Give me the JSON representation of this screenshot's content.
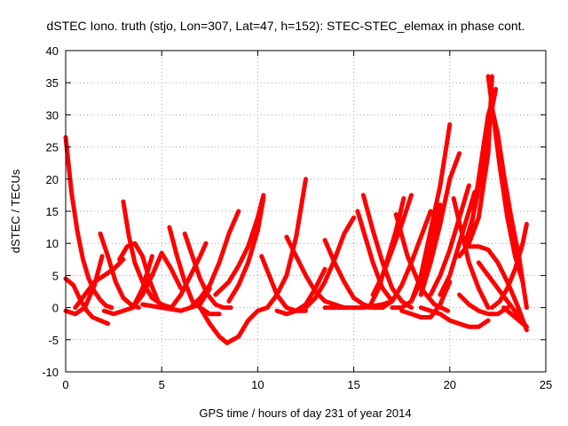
{
  "chart_data": {
    "type": "scatter",
    "title": "dSTEC Iono. truth (stjo, Lon=307, Lat=47, h=152): STEC-STEC_elemax in phase cont.",
    "xlabel": "GPS time / hours of day 231 of year 2014",
    "ylabel": "dSTEC  / TECUs",
    "xlim": [
      0,
      25
    ],
    "ylim": [
      -10,
      40
    ],
    "xticks": [
      0,
      5,
      10,
      15,
      20,
      25
    ],
    "yticks": [
      -10,
      -5,
      0,
      5,
      10,
      15,
      20,
      25,
      30,
      35,
      40
    ],
    "grid": true,
    "marker": "+",
    "colors": {
      "series": "#ff0000",
      "axes": "#000000",
      "grid": "#a0a0a0"
    },
    "series": [
      {
        "x": [
          0,
          0.3,
          0.6,
          0.9,
          1.2,
          1.5,
          1.8,
          2.1,
          2.4
        ],
        "y": [
          26.5,
          18,
          12,
          7.5,
          4.5,
          2.5,
          1.2,
          0.3,
          0
        ]
      },
      {
        "x": [
          0,
          0.4,
          0.8,
          1.1,
          1.4,
          1.8,
          2.2
        ],
        "y": [
          4.5,
          3.5,
          1,
          -0.5,
          -1.5,
          -2,
          -2.5
        ]
      },
      {
        "x": [
          0,
          0.5,
          1,
          1.5,
          1.9
        ],
        "y": [
          -0.5,
          -1,
          0,
          3.5,
          8
        ]
      },
      {
        "x": [
          0.5,
          1,
          1.5,
          2,
          2.5,
          3
        ],
        "y": [
          0,
          2,
          4,
          5,
          6,
          7.5
        ]
      },
      {
        "x": [
          1.8,
          2.2,
          2.6,
          3,
          3.4,
          3.8
        ],
        "y": [
          11.5,
          8,
          4,
          1.5,
          0.5,
          0
        ]
      },
      {
        "x": [
          2,
          2.5,
          3,
          3.5,
          4,
          4.5
        ],
        "y": [
          -0.5,
          -1,
          -0.5,
          0,
          3,
          8
        ]
      },
      {
        "x": [
          3,
          3.3,
          3.6,
          4,
          4.5,
          5,
          5.5
        ],
        "y": [
          16.5,
          11,
          7,
          4,
          1.5,
          0.5,
          0
        ]
      },
      {
        "x": [
          2.8,
          3.2,
          3.6,
          4,
          4.4,
          4.8
        ],
        "y": [
          7.5,
          9.5,
          10,
          8,
          4,
          1
        ]
      },
      {
        "x": [
          3.5,
          4,
          4.5,
          5,
          5.5,
          6
        ],
        "y": [
          0,
          2,
          5,
          8.5,
          6,
          3
        ]
      },
      {
        "x": [
          4,
          5,
          6,
          7,
          7.5
        ],
        "y": [
          0.5,
          0,
          -0.5,
          0.5,
          3
        ]
      },
      {
        "x": [
          5.4,
          5.8,
          6.2,
          6.6,
          7,
          7.5,
          8
        ],
        "y": [
          12.5,
          8,
          4,
          1,
          0,
          -1,
          -1
        ]
      },
      {
        "x": [
          6.2,
          6.6,
          7,
          7.4,
          7.8,
          8.2,
          8.6
        ],
        "y": [
          11.5,
          8,
          4.5,
          2,
          0.5,
          0,
          0
        ]
      },
      {
        "x": [
          5.5,
          6,
          6.5,
          7,
          7.3
        ],
        "y": [
          0,
          2,
          5,
          8,
          10
        ]
      },
      {
        "x": [
          6.5,
          7,
          7.5,
          8,
          8.5,
          9
        ],
        "y": [
          0,
          1.5,
          3.5,
          7,
          11.5,
          15
        ]
      },
      {
        "x": [
          7,
          7.5,
          8,
          8.4,
          9,
          9.5,
          10,
          10.5
        ],
        "y": [
          0,
          -2.5,
          -4.5,
          -5.5,
          -4.5,
          -2,
          -0.5,
          0
        ]
      },
      {
        "x": [
          7.8,
          8.5,
          9,
          9.5,
          10,
          10.3
        ],
        "y": [
          2,
          4,
          6.5,
          9.5,
          14,
          17.5
        ]
      },
      {
        "x": [
          8.5,
          9,
          9.5,
          10,
          10.3
        ],
        "y": [
          1,
          3.5,
          7,
          12,
          17
        ]
      },
      {
        "x": [
          10.2,
          10.6,
          11,
          11.5,
          12,
          12.5
        ],
        "y": [
          8,
          5,
          2,
          0,
          -0.5,
          -0.5
        ]
      },
      {
        "x": [
          10.5,
          11,
          11.5,
          12,
          12.5
        ],
        "y": [
          0,
          2,
          5,
          11,
          20
        ]
      },
      {
        "x": [
          11,
          11.5,
          12,
          12.5,
          13,
          13.5
        ],
        "y": [
          -0.5,
          -1,
          -0.5,
          0.5,
          3,
          6
        ]
      },
      {
        "x": [
          11.5,
          12,
          12.5,
          13,
          13.5,
          14,
          14.5
        ],
        "y": [
          11,
          8,
          5,
          2.5,
          1,
          0.5,
          0
        ]
      },
      {
        "x": [
          12.5,
          13,
          13.5,
          14,
          14.5,
          15
        ],
        "y": [
          0,
          1.5,
          4,
          7.5,
          11.5,
          14
        ]
      },
      {
        "x": [
          13.5,
          14,
          14.5,
          15,
          15.5,
          16,
          16.5
        ],
        "y": [
          10.5,
          7,
          4,
          1.5,
          0.5,
          0,
          0
        ]
      },
      {
        "x": [
          13.5,
          14.5,
          15.5,
          16.5,
          17
        ],
        "y": [
          0,
          0,
          0,
          0.5,
          1
        ]
      },
      {
        "x": [
          15.5,
          16,
          16.5,
          17,
          17.5,
          18
        ],
        "y": [
          17.5,
          12,
          7,
          3,
          1,
          0
        ]
      },
      {
        "x": [
          15.2,
          15.6,
          16,
          16.5,
          17
        ],
        "y": [
          15,
          11,
          7,
          3,
          1
        ]
      },
      {
        "x": [
          15.8,
          16.3,
          16.8,
          17.2,
          17.6
        ],
        "y": [
          0,
          3,
          8,
          12,
          17
        ]
      },
      {
        "x": [
          16,
          16.5,
          17,
          17.5,
          18
        ],
        "y": [
          2,
          5,
          9,
          13,
          17.5
        ]
      },
      {
        "x": [
          16.5,
          17,
          17.5,
          18,
          18.5,
          19
        ],
        "y": [
          0,
          1,
          3.5,
          7,
          11,
          15
        ]
      },
      {
        "x": [
          17,
          17.5,
          18,
          18.5,
          19,
          19.5
        ],
        "y": [
          0,
          0,
          1,
          4,
          9,
          16
        ]
      },
      {
        "x": [
          17.2,
          17.8,
          18.5,
          19.2,
          19.9
        ],
        "y": [
          14.5,
          8,
          3,
          0.5,
          -0.5
        ]
      },
      {
        "x": [
          17.5,
          18,
          18.5,
          19,
          19.5,
          20
        ],
        "y": [
          -0.5,
          -1,
          -1.5,
          -1.5,
          0.5,
          4
        ]
      },
      {
        "x": [
          18.5,
          19,
          19.5,
          20,
          20.5,
          21,
          21.5,
          22
        ],
        "y": [
          0,
          -0.5,
          -1,
          -2,
          -2.5,
          -3,
          -3,
          -2
        ]
      },
      {
        "x": [
          18,
          18.5,
          19,
          19.5,
          20
        ],
        "y": [
          1,
          5,
          12,
          19,
          28.5
        ]
      },
      {
        "x": [
          18.5,
          19,
          19.5,
          20,
          20.5
        ],
        "y": [
          2,
          7,
          13,
          20,
          24
        ]
      },
      {
        "x": [
          19,
          19.5,
          20,
          20.5,
          21
        ],
        "y": [
          2,
          5,
          9,
          14,
          19
        ]
      },
      {
        "x": [
          19.5,
          20,
          20.5,
          21,
          21.3
        ],
        "y": [
          2,
          5,
          10,
          15,
          18
        ]
      },
      {
        "x": [
          20.2,
          20.6,
          21,
          21.5,
          22
        ],
        "y": [
          17,
          12,
          7,
          3,
          0
        ]
      },
      {
        "x": [
          20.5,
          21,
          21.5,
          22,
          22.2
        ],
        "y": [
          8,
          10,
          14,
          24,
          36
        ]
      },
      {
        "x": [
          20.8,
          21.2,
          21.6,
          22,
          22.4
        ],
        "y": [
          10,
          14,
          20,
          28,
          34
        ]
      },
      {
        "x": [
          21,
          21.5,
          22,
          22.3
        ],
        "y": [
          10,
          20,
          30,
          33
        ]
      },
      {
        "x": [
          22,
          22.3,
          22.6,
          23,
          23.4,
          23.8
        ],
        "y": [
          36,
          29,
          22,
          14,
          8,
          4
        ]
      },
      {
        "x": [
          22.2,
          22.5,
          22.8,
          23.2,
          23.6,
          24
        ],
        "y": [
          31,
          27,
          21,
          14,
          8,
          0
        ]
      },
      {
        "x": [
          21,
          21.5,
          22,
          22.5,
          23,
          23.5,
          24
        ],
        "y": [
          9.5,
          9.5,
          9,
          7,
          4,
          0.5,
          -3.5
        ]
      },
      {
        "x": [
          21.5,
          22,
          22.5,
          23,
          23.5,
          24
        ],
        "y": [
          7,
          5,
          3,
          1,
          -1,
          -3
        ]
      },
      {
        "x": [
          22.2,
          22.6,
          23,
          23.4,
          23.8,
          24
        ],
        "y": [
          0,
          1,
          3,
          6,
          10,
          13
        ]
      },
      {
        "x": [
          22.8,
          23.2,
          23.6,
          24
        ],
        "y": [
          0,
          -1,
          -2,
          -3
        ]
      },
      {
        "x": [
          20.5,
          21,
          21.5,
          22,
          22.5,
          23
        ],
        "y": [
          2,
          0.5,
          -0.5,
          -1,
          -1,
          0
        ]
      }
    ]
  }
}
